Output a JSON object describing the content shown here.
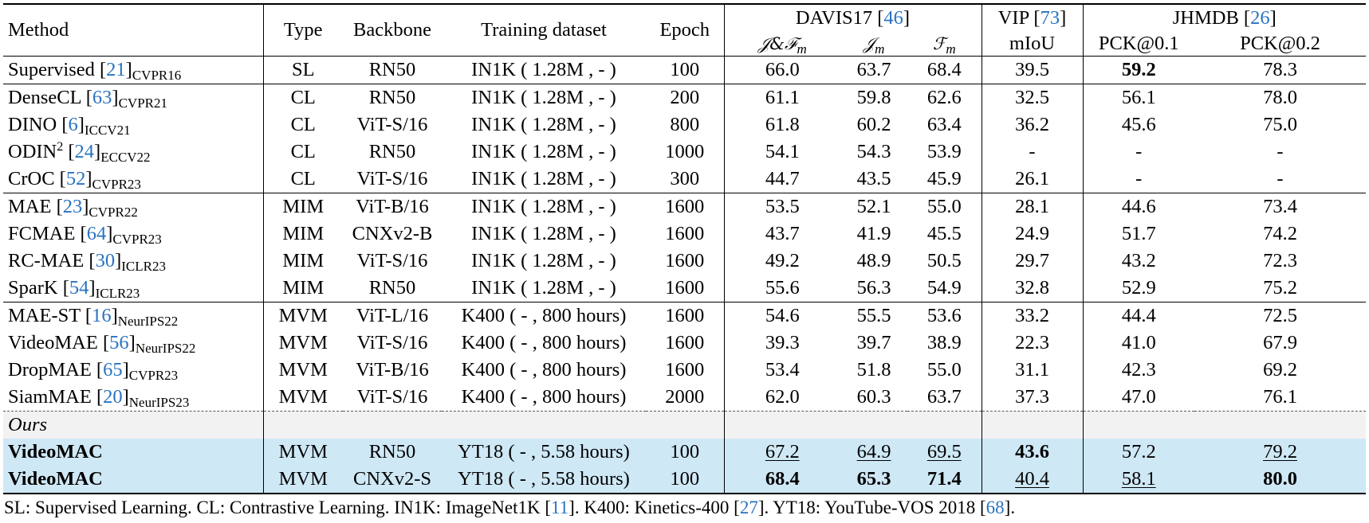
{
  "table": {
    "header_groups": {
      "method": "Method",
      "type": "Type",
      "backbone": "Backbone",
      "training_dataset": "Training dataset",
      "epoch": "Epoch",
      "davis": {
        "name": "DAVIS17",
        "ref": "46"
      },
      "vip": {
        "name": "VIP",
        "ref": "73"
      },
      "jhmdb": {
        "name": "JHMDB",
        "ref": "26"
      }
    },
    "subheaders": {
      "jf": "𝒥&ℱ",
      "jf_sub": "m",
      "j": "𝒥",
      "j_sub": "m",
      "f": "ℱ",
      "f_sub": "m",
      "miou": "mIoU",
      "pck1": "PCK@0.1",
      "pck2": "PCK@0.2"
    },
    "rows": [
      {
        "name": "Supervised",
        "ref": "21",
        "venue": "CVPR16",
        "type": "SL",
        "backbone": "RN50",
        "dataset": "IN1K ( 1.28M ,  - )",
        "epoch": "100",
        "jf": "66.0",
        "j": "63.7",
        "f": "68.4",
        "miou": "39.5",
        "pck1": "59.2",
        "pck2": "78.3"
      },
      {
        "name": "DenseCL",
        "ref": "63",
        "venue": "CVPR21",
        "type": "CL",
        "backbone": "RN50",
        "dataset": "IN1K ( 1.28M ,  - )",
        "epoch": "200",
        "jf": "61.1",
        "j": "59.8",
        "f": "62.6",
        "miou": "32.5",
        "pck1": "56.1",
        "pck2": "78.0"
      },
      {
        "name": "DINO",
        "ref": "6",
        "venue": "ICCV21",
        "type": "CL",
        "backbone": "ViT-S/16",
        "dataset": "IN1K ( 1.28M ,  - )",
        "epoch": "800",
        "jf": "61.8",
        "j": "60.2",
        "f": "63.4",
        "miou": "36.2",
        "pck1": "45.6",
        "pck2": "75.0"
      },
      {
        "name": "ODIN",
        "name_sup": "2",
        "ref": "24",
        "venue": "ECCV22",
        "type": "CL",
        "backbone": "RN50",
        "dataset": "IN1K ( 1.28M ,  - )",
        "epoch": "1000",
        "jf": "54.1",
        "j": "54.3",
        "f": "53.9",
        "miou": "-",
        "pck1": "-",
        "pck2": "-"
      },
      {
        "name": "CrOC",
        "ref": "52",
        "venue": "CVPR23",
        "type": "CL",
        "backbone": "ViT-S/16",
        "dataset": "IN1K ( 1.28M ,  - )",
        "epoch": "300",
        "jf": "44.7",
        "j": "43.5",
        "f": "45.9",
        "miou": "26.1",
        "pck1": "-",
        "pck2": "-"
      },
      {
        "name": "MAE",
        "ref": "23",
        "venue": "CVPR22",
        "type": "MIM",
        "backbone": "ViT-B/16",
        "dataset": "IN1K ( 1.28M ,  - )",
        "epoch": "1600",
        "jf": "53.5",
        "j": "52.1",
        "f": "55.0",
        "miou": "28.1",
        "pck1": "44.6",
        "pck2": "73.4"
      },
      {
        "name": "FCMAE",
        "ref": "64",
        "venue": "CVPR23",
        "type": "MIM",
        "backbone": "CNXv2-B",
        "dataset": "IN1K ( 1.28M ,  - )",
        "epoch": "1600",
        "jf": "43.7",
        "j": "41.9",
        "f": "45.5",
        "miou": "24.9",
        "pck1": "51.7",
        "pck2": "74.2"
      },
      {
        "name": "RC-MAE",
        "ref": "30",
        "venue": "ICLR23",
        "type": "MIM",
        "backbone": "ViT-S/16",
        "dataset": "IN1K ( 1.28M ,  - )",
        "epoch": "1600",
        "jf": "49.2",
        "j": "48.9",
        "f": "50.5",
        "miou": "29.7",
        "pck1": "43.2",
        "pck2": "72.3"
      },
      {
        "name": "SparK",
        "ref": "54",
        "venue": "ICLR23",
        "type": "MIM",
        "backbone": "RN50",
        "dataset": "IN1K ( 1.28M ,  - )",
        "epoch": "1600",
        "jf": "55.6",
        "j": "56.3",
        "f": "54.9",
        "miou": "32.8",
        "pck1": "52.9",
        "pck2": "75.2"
      },
      {
        "name": "MAE-ST",
        "ref": "16",
        "venue": "NeurIPS22",
        "type": "MVM",
        "backbone": "ViT-L/16",
        "dataset": "K400 ( - , 800 hours)",
        "epoch": "1600",
        "jf": "54.6",
        "j": "55.5",
        "f": "53.6",
        "miou": "33.2",
        "pck1": "44.4",
        "pck2": "72.5"
      },
      {
        "name": "VideoMAE",
        "ref": "56",
        "venue": "NeurIPS22",
        "type": "MVM",
        "backbone": "ViT-S/16",
        "dataset": "K400 ( - , 800 hours)",
        "epoch": "1600",
        "jf": "39.3",
        "j": "39.7",
        "f": "38.9",
        "miou": "22.3",
        "pck1": "41.0",
        "pck2": "67.9"
      },
      {
        "name": "DropMAE",
        "ref": "65",
        "venue": "CVPR23",
        "type": "MVM",
        "backbone": "ViT-B/16",
        "dataset": "K400 ( - , 800 hours)",
        "epoch": "1600",
        "jf": "53.4",
        "j": "51.8",
        "f": "55.0",
        "miou": "31.1",
        "pck1": "42.3",
        "pck2": "69.2"
      },
      {
        "name": "SiamMAE",
        "ref": "20",
        "venue": "NeurIPS23",
        "type": "MVM",
        "backbone": "ViT-S/16",
        "dataset": "K400 ( - , 800 hours)",
        "epoch": "2000",
        "jf": "62.0",
        "j": "60.3",
        "f": "63.7",
        "miou": "37.3",
        "pck1": "47.0",
        "pck2": "76.1"
      }
    ],
    "ours_label": "Ours",
    "ours_rows": [
      {
        "name": "VideoMAC",
        "type": "MVM",
        "backbone": "RN50",
        "dataset": "YT18 ( - , 5.58 hours)",
        "epoch": "100",
        "jf": "67.2",
        "j": "64.9",
        "f": "69.5",
        "miou": "43.6",
        "pck1": "57.2",
        "pck2": "79.2"
      },
      {
        "name": "VideoMAC",
        "type": "MVM",
        "backbone": "CNXv2-S",
        "dataset": "YT18 ( - , 5.58 hours)",
        "epoch": "100",
        "jf": "68.4",
        "j": "65.3",
        "f": "71.4",
        "miou": "40.4",
        "pck1": "58.1",
        "pck2": "80.0"
      }
    ]
  },
  "footnote": {
    "text1": "SL: Supervised Learning. CL: Contrastive Learning. IN1K: ImageNet1K [",
    "ref1": "11",
    "text2": "]. K400: Kinetics-400 [",
    "ref2": "27",
    "text3": "]. YT18: YouTube-VOS 2018 [",
    "ref3": "68",
    "text4": "]."
  },
  "colors": {
    "highlight": "#cfe8f6",
    "citation": "#2a73c0",
    "ours_band": "#f2f2f2"
  }
}
